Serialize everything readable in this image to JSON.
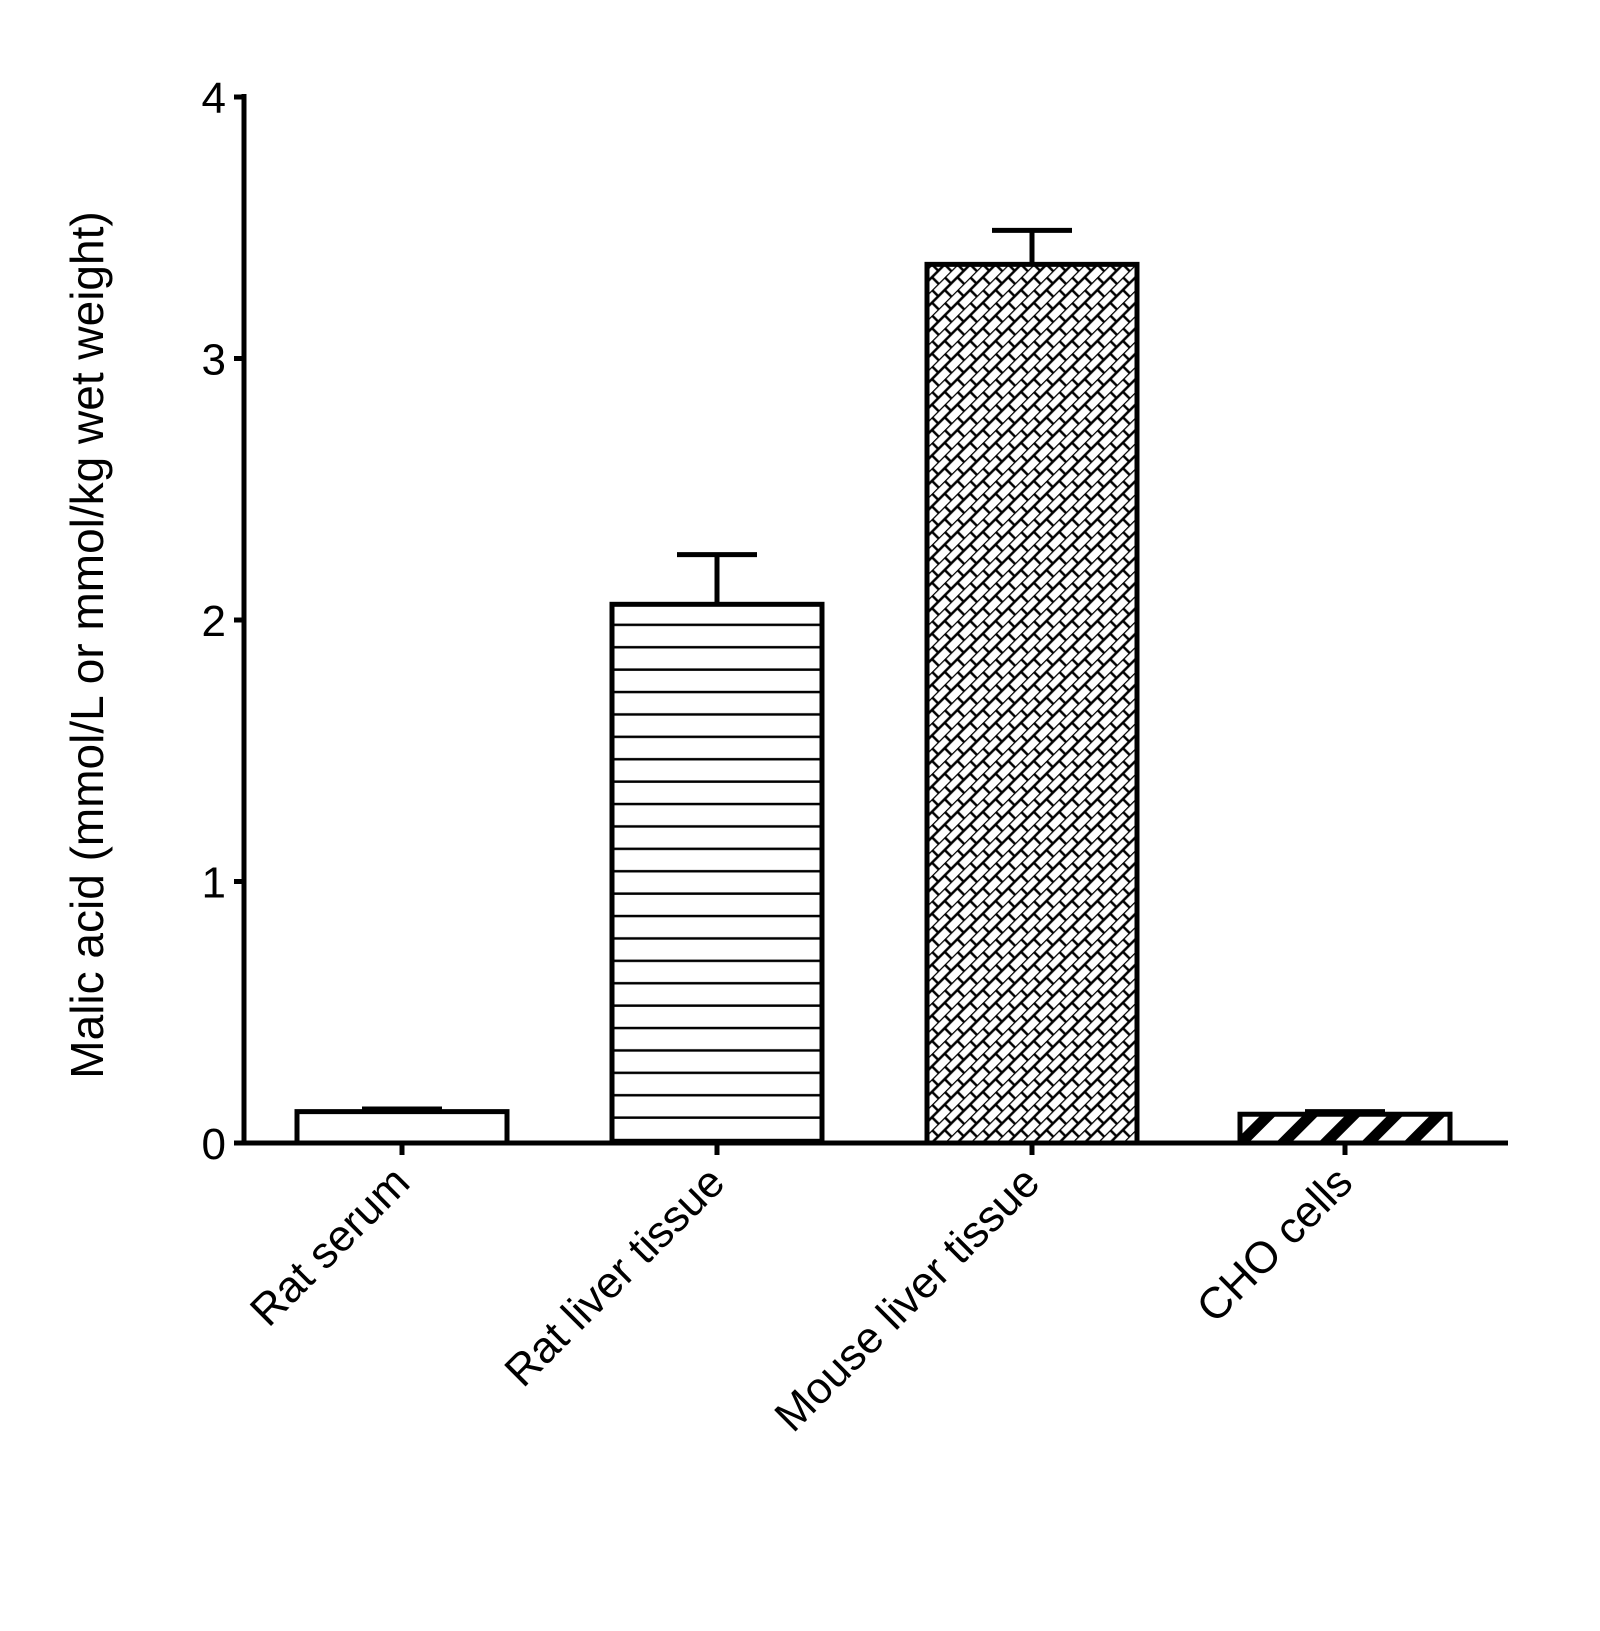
{
  "chart_data": {
    "type": "bar",
    "title": "",
    "xlabel": "",
    "ylabel": "Malic acid (mmol/L or mmol/kg wet weight)",
    "categories": [
      "Rat serum",
      "Rat liver tissue",
      "Mouse liver tissue",
      "CHO cells"
    ],
    "values": [
      0.12,
      2.06,
      3.36,
      0.11
    ],
    "errors": [
      0.01,
      0.19,
      0.13,
      0.01
    ],
    "ylim": [
      0,
      4
    ],
    "yticks": [
      0,
      1,
      2,
      3,
      4
    ],
    "ytick_labels": [
      "0",
      "1",
      "2",
      "3",
      "4"
    ],
    "fills": [
      "dotted",
      "horizontal-lines",
      "brick-hatch",
      "diagonal-stripes"
    ],
    "grid": false,
    "legend": "none",
    "colors": {
      "stroke": "#000000",
      "background": "#ffffff"
    }
  }
}
